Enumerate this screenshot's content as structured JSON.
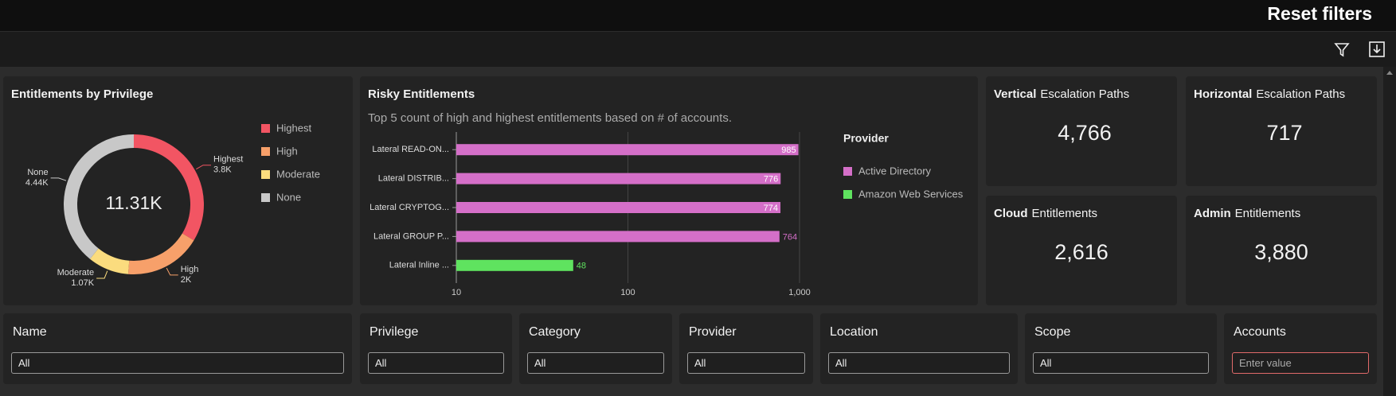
{
  "header": {
    "reset": "Reset filters"
  },
  "chart_data": [
    {
      "type": "pie",
      "title": "Entitlements by Privilege",
      "center_label": "11.31K",
      "categories": [
        "Highest",
        "High",
        "Moderate",
        "None"
      ],
      "values": [
        3800,
        2000,
        1070,
        4440
      ],
      "value_labels": [
        "3.8K",
        "2K",
        "1.07K",
        "4.44K"
      ],
      "colors": [
        "#f25563",
        "#f7a06a",
        "#fbdc7e",
        "#c8c8c8"
      ]
    },
    {
      "type": "bar",
      "orientation": "horizontal",
      "title": "Risky Entitlements",
      "subtitle": "Top 5 count of high and highest entitlements based on # of accounts.",
      "categories": [
        "Lateral READ-ON...",
        "Lateral DISTRIB...",
        "Lateral CRYPTOG...",
        "Lateral GROUP P...",
        "Lateral Inline ..."
      ],
      "legend_title": "Provider",
      "series": [
        {
          "name": "Active Directory",
          "color": "#d46fc8",
          "values": [
            985,
            776,
            774,
            764,
            null
          ]
        },
        {
          "name": "Amazon Web Services",
          "color": "#5fe35f",
          "values": [
            null,
            null,
            null,
            null,
            48
          ]
        }
      ],
      "xscale": "log",
      "xlim": [
        10,
        1000
      ],
      "xticks": [
        10,
        100,
        {
          "value": 1000,
          "label": "1,000"
        }
      ],
      "grid": true
    }
  ],
  "kpis": [
    {
      "bold": "Vertical",
      "rest": "Escalation Paths",
      "value": "4,766",
      "flag": true
    },
    {
      "bold": "Horizontal",
      "rest": "Escalation Paths",
      "value": "717",
      "flag": true
    },
    {
      "bold": "Cloud",
      "rest": "Entitlements",
      "value": "2,616",
      "flag": false
    },
    {
      "bold": "Admin",
      "rest": "Entitlements",
      "value": "3,880",
      "flag": false
    }
  ],
  "filters": [
    {
      "label": "Name",
      "value": "All"
    },
    {
      "label": "Privilege",
      "value": "All"
    },
    {
      "label": "Category",
      "value": "All"
    },
    {
      "label": "Provider",
      "value": "All"
    },
    {
      "label": "Location",
      "value": "All"
    },
    {
      "label": "Scope",
      "value": "All"
    },
    {
      "label": "Accounts",
      "placeholder": "Enter value"
    }
  ]
}
